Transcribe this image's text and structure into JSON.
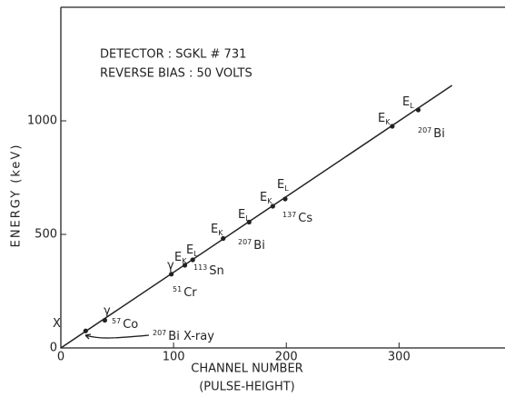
{
  "chart_data": {
    "type": "scatter",
    "annotations": [
      "DETECTOR : SGKL # 731",
      "REVERSE BIAS : 50 VOLTS"
    ],
    "x_label": "CHANNEL NUMBER",
    "x_label_2": "(PULSE-HEIGHT)",
    "y_label": "ENERGY (keV)",
    "xlim": [
      0,
      394
    ],
    "ylim": [
      0,
      1500
    ],
    "xticks": [
      0,
      100,
      200,
      300
    ],
    "yticks": [
      0,
      500,
      1000
    ],
    "color": "#222222",
    "series": [
      {
        "type": "scatter",
        "x": [
          22,
          39,
          98,
          110,
          117,
          144,
          167,
          188,
          199,
          294,
          317
        ],
        "values": [
          75,
          122,
          325,
          364,
          388,
          482,
          554,
          624,
          656,
          976,
          1048
        ],
        "point_labels": [
          {
            "text": "X"
          },
          {
            "text": "γ"
          },
          {
            "text": "γ"
          },
          {
            "text": "E",
            "sub": "K"
          },
          {
            "text": "E",
            "sub": "L"
          },
          {
            "text": "E",
            "sub": "K"
          },
          {
            "text": "E",
            "sub": "L"
          },
          {
            "text": "E",
            "sub": "K"
          },
          {
            "text": "E",
            "sub": "L"
          },
          {
            "text": "E",
            "sub": "K"
          },
          {
            "text": "E",
            "sub": "L"
          }
        ]
      },
      {
        "type": "line",
        "x": [
          0,
          347
        ],
        "values": [
          0,
          1156
        ]
      }
    ],
    "sources": [
      {
        "sup": "207",
        "text": "Bi X-ray"
      },
      {
        "sup": "57",
        "text": "Co"
      },
      {
        "sup": "51",
        "text": "Cr"
      },
      {
        "sup": "113",
        "text": "Sn"
      },
      {
        "sup": "207",
        "text": "Bi"
      },
      {
        "sup": "137",
        "text": "Cs"
      },
      {
        "sup": "207",
        "text": "Bi"
      }
    ]
  }
}
